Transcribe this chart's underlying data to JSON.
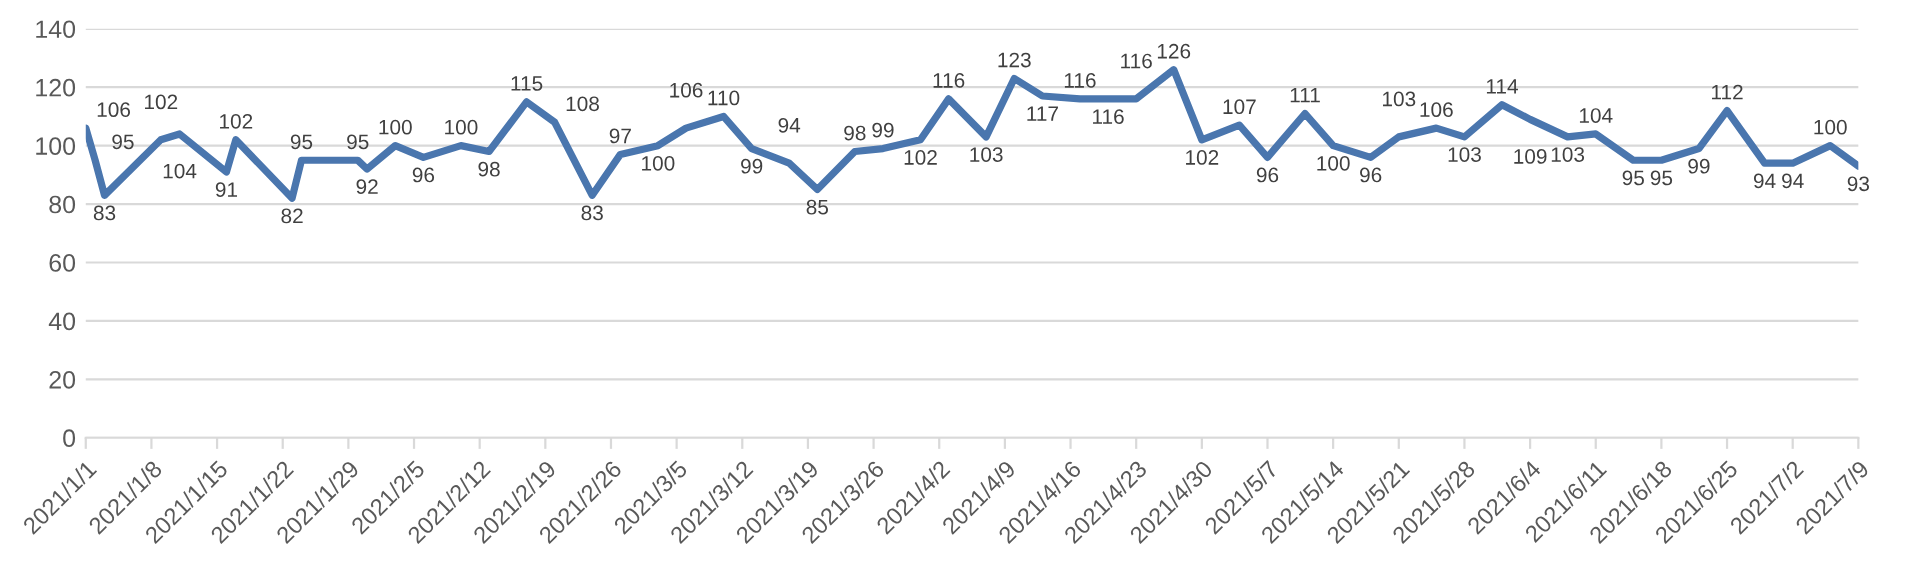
{
  "chart_data": {
    "type": "line",
    "x": [
      "2021-01-01",
      "2021-01-02",
      "2021-01-03",
      "2021-01-09",
      "2021-01-11",
      "2021-01-16",
      "2021-01-17",
      "2021-01-23",
      "2021-01-24",
      "2021-01-30",
      "2021-01-31",
      "2021-02-03",
      "2021-02-06",
      "2021-02-10",
      "2021-02-13",
      "2021-02-17",
      "2021-02-20",
      "2021-02-24",
      "2021-02-27",
      "2021-03-03",
      "2021-03-06",
      "2021-03-10",
      "2021-03-13",
      "2021-03-17",
      "2021-03-20",
      "2021-03-24",
      "2021-03-27",
      "2021-03-31",
      "2021-04-03",
      "2021-04-07",
      "2021-04-10",
      "2021-04-13",
      "2021-04-17",
      "2021-04-20",
      "2021-04-23",
      "2021-04-27",
      "2021-04-30",
      "2021-05-04",
      "2021-05-07",
      "2021-05-11",
      "2021-05-14",
      "2021-05-18",
      "2021-05-21",
      "2021-05-25",
      "2021-05-28",
      "2021-06-01",
      "2021-06-04",
      "2021-06-08",
      "2021-06-11",
      "2021-06-15",
      "2021-06-18",
      "2021-06-22",
      "2021-06-25",
      "2021-06-29",
      "2021-07-02",
      "2021-07-06",
      "2021-07-09"
    ],
    "series": [
      {
        "color": "#4a76ae",
        "values": [
          106,
          95,
          83,
          102,
          104,
          91,
          102,
          82,
          95,
          95,
          92,
          100,
          96,
          100,
          98,
          115,
          108,
          83,
          97,
          100,
          106,
          110,
          99,
          94,
          85,
          98,
          99,
          102,
          116,
          103,
          123,
          117,
          116,
          116,
          116,
          126,
          102,
          107,
          96,
          111,
          100,
          96,
          103,
          106,
          103,
          114,
          109,
          103,
          104,
          95,
          95,
          99,
          112,
          94,
          94,
          100,
          93
        ]
      }
    ],
    "data_labels": true,
    "xlim": [
      "2021-01-01",
      "2021-07-09"
    ],
    "xticks": [
      {
        "value": "2021-01-01",
        "label": "2021/1/1"
      },
      {
        "value": "2021-01-08",
        "label": "2021/1/8"
      },
      {
        "value": "2021-01-15",
        "label": "2021/1/15"
      },
      {
        "value": "2021-01-22",
        "label": "2021/1/22"
      },
      {
        "value": "2021-01-29",
        "label": "2021/1/29"
      },
      {
        "value": "2021-02-05",
        "label": "2021/2/5"
      },
      {
        "value": "2021-02-12",
        "label": "2021/2/12"
      },
      {
        "value": "2021-02-19",
        "label": "2021/2/19"
      },
      {
        "value": "2021-02-26",
        "label": "2021/2/26"
      },
      {
        "value": "2021-03-05",
        "label": "2021/3/5"
      },
      {
        "value": "2021-03-12",
        "label": "2021/3/12"
      },
      {
        "value": "2021-03-19",
        "label": "2021/3/19"
      },
      {
        "value": "2021-03-26",
        "label": "2021/3/26"
      },
      {
        "value": "2021-04-02",
        "label": "2021/4/2"
      },
      {
        "value": "2021-04-09",
        "label": "2021/4/9"
      },
      {
        "value": "2021-04-16",
        "label": "2021/4/16"
      },
      {
        "value": "2021-04-23",
        "label": "2021/4/23"
      },
      {
        "value": "2021-04-30",
        "label": "2021/4/30"
      },
      {
        "value": "2021-05-07",
        "label": "2021/5/7"
      },
      {
        "value": "2021-05-14",
        "label": "2021/5/14"
      },
      {
        "value": "2021-05-21",
        "label": "2021/5/21"
      },
      {
        "value": "2021-05-28",
        "label": "2021/5/28"
      },
      {
        "value": "2021-06-04",
        "label": "2021/6/4"
      },
      {
        "value": "2021-06-11",
        "label": "2021/6/11"
      },
      {
        "value": "2021-06-18",
        "label": "2021/6/18"
      },
      {
        "value": "2021-06-25",
        "label": "2021/6/25"
      },
      {
        "value": "2021-07-02",
        "label": "2021/7/2"
      },
      {
        "value": "2021-07-09",
        "label": "2021/7/9"
      }
    ],
    "ylim": [
      0,
      140
    ],
    "yticks": [
      0,
      20,
      40,
      60,
      80,
      100,
      120,
      140
    ],
    "grid": "y",
    "legend": false,
    "marker": "none",
    "line_style": "solid"
  }
}
